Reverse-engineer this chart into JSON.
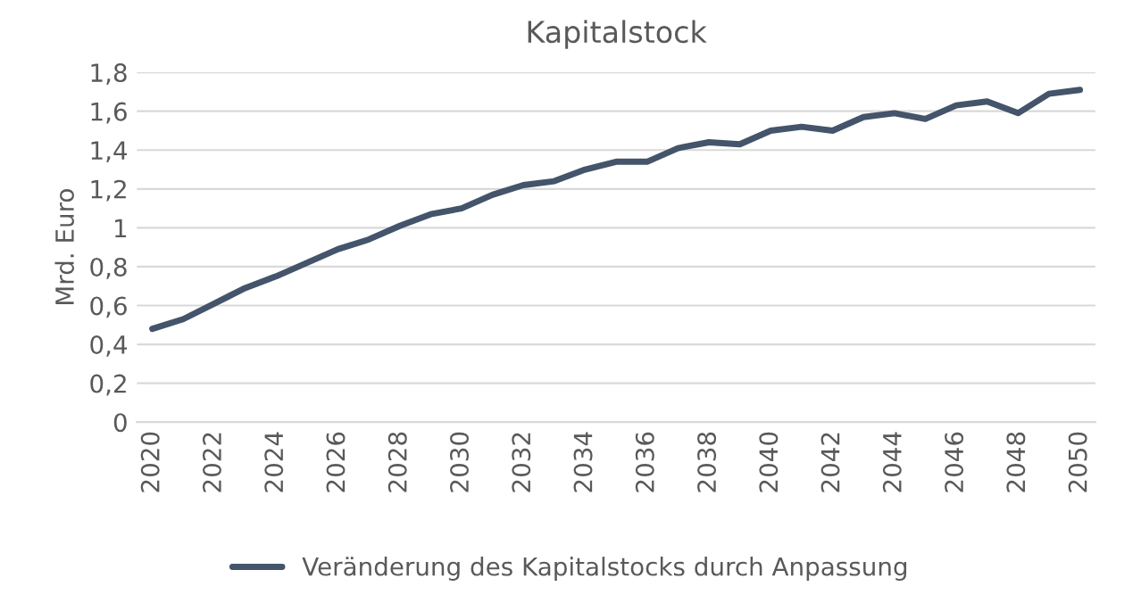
{
  "chart_data": {
    "type": "line",
    "title": "Kapitalstock",
    "ylabel": "Mrd. Euro",
    "x": [
      2020,
      2021,
      2022,
      2023,
      2024,
      2025,
      2026,
      2027,
      2028,
      2029,
      2030,
      2031,
      2032,
      2033,
      2034,
      2035,
      2036,
      2037,
      2038,
      2039,
      2040,
      2041,
      2042,
      2043,
      2044,
      2045,
      2046,
      2047,
      2048,
      2049,
      2050
    ],
    "series": [
      {
        "name": "Veränderung des Kapitalstocks durch Anpassung",
        "color": "#44546a",
        "values": [
          0.48,
          0.53,
          0.61,
          0.69,
          0.75,
          0.82,
          0.89,
          0.94,
          1.01,
          1.07,
          1.1,
          1.17,
          1.22,
          1.24,
          1.3,
          1.34,
          1.34,
          1.41,
          1.44,
          1.43,
          1.5,
          1.52,
          1.5,
          1.57,
          1.59,
          1.56,
          1.63,
          1.65,
          1.59,
          1.69,
          1.71
        ]
      }
    ],
    "xlim": [
      2019.5,
      2050.5
    ],
    "xticks": [
      2020,
      2022,
      2024,
      2026,
      2028,
      2030,
      2032,
      2034,
      2036,
      2038,
      2040,
      2042,
      2044,
      2046,
      2048,
      2050
    ],
    "ylim": [
      0,
      1.8
    ],
    "yticks": [
      0,
      {
        "value": 0.2,
        "label": "0,2"
      },
      {
        "value": 0.4,
        "label": "0,4"
      },
      {
        "value": 0.6,
        "label": "0,6"
      },
      {
        "value": 0.8,
        "label": "0,8"
      },
      1,
      {
        "value": 1.2,
        "label": "1,2"
      },
      {
        "value": 1.4,
        "label": "1,4"
      },
      {
        "value": 1.6,
        "label": "1,6"
      },
      {
        "value": 1.8,
        "label": "1,8"
      }
    ],
    "grid": "y",
    "legend": "bottom",
    "marker": "none",
    "line_style": "solid"
  }
}
